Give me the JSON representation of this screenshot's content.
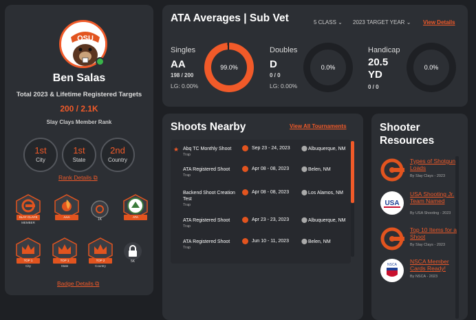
{
  "profile": {
    "name": "Ben Salas",
    "total_label": "Total 2023 & Lifetime Registered Targets",
    "targets": "200 / 2.1K",
    "rank_label": "Slay Clays Member Rank",
    "ranks": [
      {
        "value": "1st",
        "label": "City"
      },
      {
        "value": "1st",
        "label": "State"
      },
      {
        "value": "2nd",
        "label": "Country"
      }
    ],
    "rank_details": "Rank Details",
    "badges": [
      {
        "ribbon": "SLAY CLAYS",
        "sub": "MEMBER"
      },
      {
        "ribbon": "AAA",
        "sub": ""
      },
      {
        "ribbon": "1K",
        "sub": ""
      },
      {
        "ribbon": "ATA",
        "sub": ""
      },
      {
        "ribbon": "TOP 1",
        "sub": "City"
      },
      {
        "ribbon": "TOP 1",
        "sub": "State"
      },
      {
        "ribbon": "TOP 2",
        "sub": "Country"
      },
      {
        "ribbon": "5K",
        "sub": ""
      }
    ],
    "badge_details": "Badge Details",
    "logo_text": "OSU"
  },
  "ata": {
    "title": "ATA Averages | Sub Vet",
    "class_select": "5 CLASS",
    "year_select": "2023 TARGET YEAR",
    "view_details": "View Details",
    "stats": [
      {
        "heading": "Singles",
        "grade": "AA",
        "score": "198 / 200",
        "lg": "LG: 0.00%",
        "pct": "99.0%",
        "fill": 0.99
      },
      {
        "heading": "Doubles",
        "grade": "D",
        "score": "0 / 0",
        "lg": "LG: 0.00%",
        "pct": "0.0%",
        "fill": 0
      },
      {
        "heading": "Handicap",
        "grade": "20.5",
        "grade2": "YD",
        "score": "0 / 0",
        "lg": "",
        "pct": "0.0%",
        "fill": 0
      }
    ]
  },
  "shoots": {
    "title": "Shoots Nearby",
    "view_all": "View All Tournaments",
    "rows": [
      {
        "name": "Abq TC Monthly Shoot",
        "type": "Trap",
        "date": "Sep 23 - 24, 2023",
        "place": "Albuquerque, NM",
        "starred": true
      },
      {
        "name": "ATA Registered Shoot",
        "type": "Trap",
        "date": "Apr 08 - 08, 2023",
        "place": "Belen, NM",
        "starred": false
      },
      {
        "name": "Backend Shoot Creation Test",
        "type": "Trap",
        "date": "Apr 08 - 08, 2023",
        "place": "Los Alamos, NM",
        "starred": false
      },
      {
        "name": "ATA Registered Shoot",
        "type": "Trap",
        "date": "Apr 23 - 23, 2023",
        "place": "Albuquerque, NM",
        "starred": false
      },
      {
        "name": "ATA Registered Shoot",
        "type": "Trap",
        "date": "Jun 10 - 11, 2023",
        "place": "Belen, NM",
        "starred": false
      }
    ]
  },
  "resources": {
    "title": "Shooter Resources",
    "items": [
      {
        "title": "Types of Shotgun Loads",
        "by": "By Slay Clays - 2023",
        "logo": "slay"
      },
      {
        "title": "USA Shooting Jr. Team Named",
        "by": "By USA Shooting - 2023",
        "logo": "usa",
        "logo_text": "USA"
      },
      {
        "title": "Top 10 Items for a Shoot",
        "by": "By Slay Clays - 2023",
        "logo": "slay"
      },
      {
        "title": "NSCA Member Cards Ready!",
        "by": "By NSCA - 2023",
        "logo": "nsca",
        "logo_text": "NSCA"
      }
    ]
  },
  "colors": {
    "accent": "#f15a29",
    "card": "#2c2f34",
    "bg": "#1e2024"
  }
}
